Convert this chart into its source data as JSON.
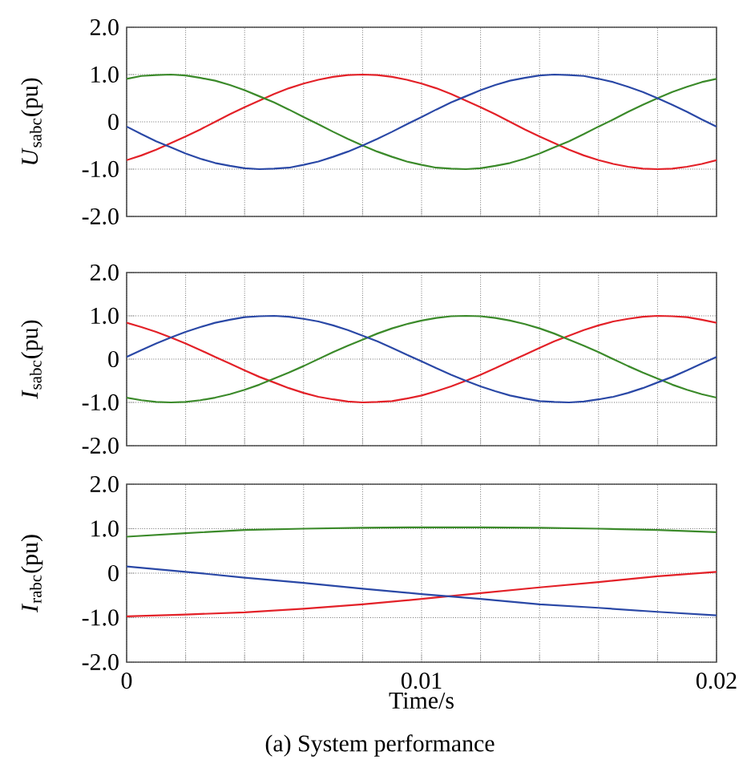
{
  "chart_data": [
    {
      "type": "line",
      "ylabel": "*U*$_{sabc}$(pu)",
      "tick_labels": "y",
      "grid": true,
      "x": [
        0,
        0.0005,
        0.001,
        0.0015,
        0.002,
        0.0025,
        0.003,
        0.0035,
        0.004,
        0.0045,
        0.005,
        0.0055,
        0.006,
        0.0065,
        0.007,
        0.0075,
        0.008,
        0.0085,
        0.009,
        0.0095,
        0.01,
        0.0105,
        0.011,
        0.0115,
        0.012,
        0.0125,
        0.013,
        0.0135,
        0.014,
        0.0145,
        0.015,
        0.0155,
        0.016,
        0.0165,
        0.017,
        0.0175,
        0.018,
        0.0185,
        0.019,
        0.0195,
        0.02
      ],
      "xlim": [
        0,
        0.02
      ],
      "xticks": [
        0,
        {
          "value": 0.002,
          "label": null
        },
        {
          "value": 0.004,
          "label": null
        },
        {
          "value": 0.006,
          "label": null
        },
        {
          "value": 0.008,
          "label": null
        },
        0.01,
        {
          "value": 0.012,
          "label": null
        },
        {
          "value": 0.014,
          "label": null
        },
        {
          "value": 0.016,
          "label": null
        },
        {
          "value": 0.018,
          "label": null
        },
        0.02
      ],
      "ylim": [
        -2,
        2
      ],
      "yticks": [
        {
          "value": -2,
          "label": "-2.0"
        },
        {
          "value": -1,
          "label": "-1.0"
        },
        0,
        {
          "value": 1,
          "label": "1.0"
        },
        {
          "value": 2,
          "label": "2.0"
        }
      ],
      "series": [
        {
          "color": "#e32128",
          "values": [
            -0.81,
            -0.71,
            -0.59,
            -0.45,
            -0.31,
            -0.16,
            0,
            0.16,
            0.31,
            0.45,
            0.59,
            0.71,
            0.81,
            0.89,
            0.95,
            0.99,
            1,
            0.99,
            0.95,
            0.89,
            0.81,
            0.71,
            0.59,
            0.45,
            0.31,
            0.16,
            0,
            -0.16,
            -0.31,
            -0.45,
            -0.59,
            -0.71,
            -0.81,
            -0.89,
            -0.95,
            -0.99,
            -1,
            -0.99,
            -0.95,
            -0.89,
            -0.81
          ]
        },
        {
          "color": "#3b8a2a",
          "values": [
            0.91,
            0.97,
            0.99,
            1.0,
            0.98,
            0.93,
            0.87,
            0.78,
            0.67,
            0.54,
            0.41,
            0.26,
            0.1,
            -0.05,
            -0.21,
            -0.36,
            -0.5,
            -0.63,
            -0.74,
            -0.84,
            -0.91,
            -0.97,
            -0.99,
            -1.0,
            -0.98,
            -0.93,
            -0.87,
            -0.78,
            -0.67,
            -0.54,
            -0.41,
            -0.26,
            -0.1,
            0.05,
            0.21,
            0.36,
            0.5,
            0.63,
            0.74,
            0.84,
            0.91
          ]
        },
        {
          "color": "#2a48a6",
          "values": [
            -0.1,
            -0.26,
            -0.41,
            -0.54,
            -0.67,
            -0.78,
            -0.87,
            -0.93,
            -0.98,
            -1.0,
            -0.99,
            -0.97,
            -0.91,
            -0.84,
            -0.74,
            -0.63,
            -0.5,
            -0.36,
            -0.21,
            -0.05,
            0.1,
            0.26,
            0.41,
            0.54,
            0.67,
            0.78,
            0.87,
            0.93,
            0.98,
            1.0,
            0.99,
            0.97,
            0.91,
            0.84,
            0.74,
            0.63,
            0.5,
            0.36,
            0.21,
            0.05,
            -0.1
          ]
        }
      ]
    },
    {
      "type": "line",
      "ylabel": "*I*$_{sabc}$(pu)",
      "tick_labels": "y",
      "grid": true,
      "x": [
        0,
        0.0005,
        0.001,
        0.0015,
        0.002,
        0.0025,
        0.003,
        0.0035,
        0.004,
        0.0045,
        0.005,
        0.0055,
        0.006,
        0.0065,
        0.007,
        0.0075,
        0.008,
        0.0085,
        0.009,
        0.0095,
        0.01,
        0.0105,
        0.011,
        0.0115,
        0.012,
        0.0125,
        0.013,
        0.0135,
        0.014,
        0.0145,
        0.015,
        0.0155,
        0.016,
        0.0165,
        0.017,
        0.0175,
        0.018,
        0.0185,
        0.019,
        0.0195,
        0.02
      ],
      "xlim": [
        0,
        0.02
      ],
      "xticks": [
        0,
        {
          "value": 0.002,
          "label": null
        },
        {
          "value": 0.004,
          "label": null
        },
        {
          "value": 0.006,
          "label": null
        },
        {
          "value": 0.008,
          "label": null
        },
        0.01,
        {
          "value": 0.012,
          "label": null
        },
        {
          "value": 0.014,
          "label": null
        },
        {
          "value": 0.016,
          "label": null
        },
        {
          "value": 0.018,
          "label": null
        },
        0.02
      ],
      "ylim": [
        -2,
        2
      ],
      "yticks": [
        {
          "value": -2,
          "label": "-2.0"
        },
        {
          "value": -1,
          "label": "-1.0"
        },
        0,
        {
          "value": 1,
          "label": "1.0"
        },
        {
          "value": 2,
          "label": "2.0"
        }
      ],
      "series": [
        {
          "color": "#e32128",
          "values": [
            0.84,
            0.74,
            0.63,
            0.5,
            0.36,
            0.21,
            0.05,
            -0.1,
            -0.26,
            -0.41,
            -0.54,
            -0.67,
            -0.78,
            -0.87,
            -0.93,
            -0.98,
            -1.0,
            -0.99,
            -0.97,
            -0.91,
            -0.84,
            -0.74,
            -0.63,
            -0.5,
            -0.36,
            -0.21,
            -0.05,
            0.1,
            0.26,
            0.41,
            0.54,
            0.67,
            0.78,
            0.87,
            0.93,
            0.98,
            1.0,
            0.99,
            0.97,
            0.91,
            0.84
          ]
        },
        {
          "color": "#3b8a2a",
          "values": [
            -0.89,
            -0.95,
            -0.99,
            -1.0,
            -0.99,
            -0.95,
            -0.89,
            -0.81,
            -0.71,
            -0.59,
            -0.45,
            -0.31,
            -0.16,
            0,
            0.16,
            0.31,
            0.45,
            0.59,
            0.71,
            0.81,
            0.89,
            0.95,
            0.99,
            1.0,
            0.99,
            0.95,
            0.89,
            0.81,
            0.71,
            0.59,
            0.45,
            0.31,
            0.16,
            0,
            -0.16,
            -0.31,
            -0.45,
            -0.59,
            -0.71,
            -0.81,
            -0.89
          ]
        },
        {
          "color": "#2a48a6",
          "values": [
            0.05,
            0.21,
            0.36,
            0.5,
            0.63,
            0.74,
            0.84,
            0.91,
            0.97,
            0.99,
            1.0,
            0.98,
            0.93,
            0.87,
            0.78,
            0.67,
            0.54,
            0.41,
            0.26,
            0.1,
            -0.05,
            -0.21,
            -0.36,
            -0.5,
            -0.63,
            -0.74,
            -0.84,
            -0.91,
            -0.97,
            -0.99,
            -1.0,
            -0.98,
            -0.93,
            -0.87,
            -0.78,
            -0.67,
            -0.54,
            -0.41,
            -0.26,
            -0.1,
            0.05
          ]
        }
      ]
    },
    {
      "type": "line",
      "ylabel": "*I*$_{rabc}$(pu)",
      "xlabel": "Time/s",
      "grid": true,
      "annotations": [
        "(a) System performance"
      ],
      "x": [
        0,
        0.002,
        0.004,
        0.006,
        0.008,
        0.01,
        0.012,
        0.014,
        0.016,
        0.018,
        0.02
      ],
      "xlim": [
        0,
        0.02
      ],
      "xticks": [
        0,
        {
          "value": 0.002,
          "label": null
        },
        {
          "value": 0.004,
          "label": null
        },
        {
          "value": 0.006,
          "label": null
        },
        {
          "value": 0.008,
          "label": null
        },
        0.01,
        {
          "value": 0.012,
          "label": null
        },
        {
          "value": 0.014,
          "label": null
        },
        {
          "value": 0.016,
          "label": null
        },
        {
          "value": 0.018,
          "label": null
        },
        0.02
      ],
      "ylim": [
        -2,
        2
      ],
      "yticks": [
        {
          "value": -2,
          "label": "-2.0"
        },
        {
          "value": -1,
          "label": "-1.0"
        },
        0,
        {
          "value": 1,
          "label": "1.0"
        },
        {
          "value": 2,
          "label": "2.0"
        }
      ],
      "series": [
        {
          "color": "#e32128",
          "values": [
            -0.97,
            -0.93,
            -0.88,
            -0.8,
            -0.7,
            -0.58,
            -0.45,
            -0.32,
            -0.2,
            -0.07,
            0.03
          ]
        },
        {
          "color": "#3b8a2a",
          "values": [
            0.82,
            0.9,
            0.97,
            1.0,
            1.02,
            1.03,
            1.03,
            1.02,
            1.0,
            0.97,
            0.92
          ]
        },
        {
          "color": "#2a48a6",
          "values": [
            0.15,
            0.03,
            -0.1,
            -0.22,
            -0.35,
            -0.47,
            -0.58,
            -0.7,
            -0.78,
            -0.87,
            -0.95
          ]
        }
      ]
    }
  ]
}
